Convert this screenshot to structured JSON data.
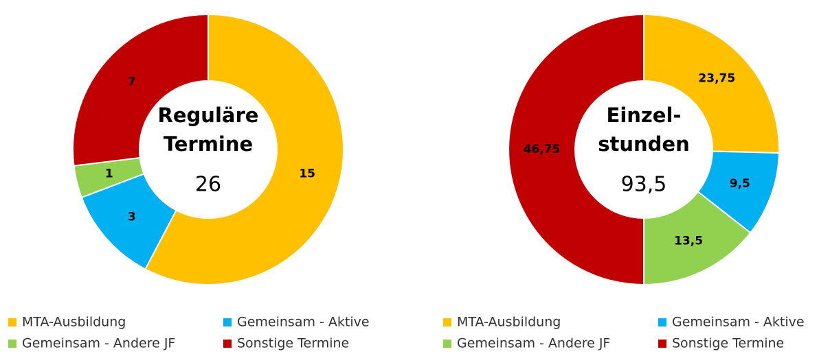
{
  "chart_data": [
    {
      "type": "donut",
      "center_lines": [
        "Reguläre",
        "Termine"
      ],
      "center_value": "26",
      "categories": [
        "MTA-Ausbildung",
        "Gemeinsam - Aktive",
        "Gemeinsam - Andere JF",
        "Sonstige Termine"
      ],
      "values": [
        15,
        3,
        1,
        7
      ],
      "value_labels": [
        "15",
        "3",
        "1",
        "7"
      ],
      "colors": [
        "#FFC000",
        "#00B0F0",
        "#92D050",
        "#C00000"
      ]
    },
    {
      "type": "donut",
      "center_lines": [
        "Einzel-",
        "stunden"
      ],
      "center_value": "93,5",
      "categories": [
        "MTA-Ausbildung",
        "Gemeinsam - Aktive",
        "Gemeinsam - Andere JF",
        "Sonstige Termine"
      ],
      "values": [
        23.75,
        9.5,
        13.5,
        46.75
      ],
      "value_labels": [
        "23,75",
        "9,5",
        "13,5",
        "46,75"
      ],
      "colors": [
        "#FFC000",
        "#00B0F0",
        "#92D050",
        "#C00000"
      ]
    }
  ]
}
